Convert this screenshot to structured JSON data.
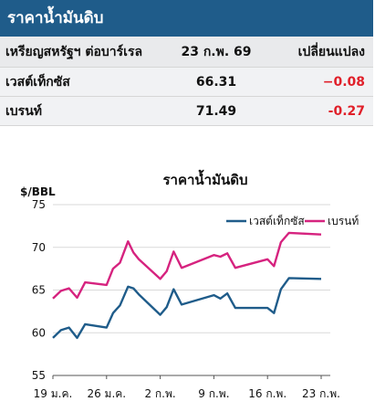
{
  "table": {
    "title": "ราคาน้ำมันดิบ",
    "header": {
      "label": "เหรียญสหรัฐฯ ต่อบาร์เรล",
      "date": "23 ก.พ. 69",
      "change": "เปลี่ยนแปลง"
    },
    "rows": [
      {
        "name": "เวสต์เท็กซัส",
        "value": "66.31",
        "change": "−0.08"
      },
      {
        "name": "เบรนท์",
        "value": "71.49",
        "change": "-0.27"
      }
    ]
  },
  "chart_data": {
    "type": "line",
    "title": "ราคาน้ำมันดิบ",
    "ylabel": "$/BBL",
    "ylim": [
      55,
      75
    ],
    "yticks": [
      55,
      60,
      65,
      70,
      75
    ],
    "xticks": [
      {
        "label": "19 ม.ค.",
        "index": 0
      },
      {
        "label": "26 ม.ค.",
        "index": 5
      },
      {
        "label": "2 ก.พ.",
        "index": 10
      },
      {
        "label": "9 ก.พ.",
        "index": 15
      },
      {
        "label": "16 ก.พ.",
        "index": 20
      },
      {
        "label": "23 ก.พ.",
        "index": 25
      }
    ],
    "x": [
      0,
      0.75,
      1.5,
      2.25,
      3,
      5,
      5.6,
      6.25,
      7,
      7.5,
      8,
      10,
      10.6,
      11.25,
      12,
      15,
      15.6,
      16.25,
      17,
      20,
      20.6,
      21.25,
      22,
      25
    ],
    "legend_position": "top-right",
    "series": [
      {
        "name": "เวสต์เท็กซัส",
        "color": "#1f5c8a",
        "values": [
          59.4,
          60.3,
          60.6,
          59.4,
          61.0,
          60.6,
          62.3,
          63.2,
          65.4,
          65.2,
          64.5,
          62.1,
          63.0,
          65.1,
          63.3,
          64.4,
          64.0,
          64.6,
          62.9,
          62.9,
          62.3,
          65.1,
          66.4,
          66.3
        ]
      },
      {
        "name": "เบรนท์",
        "color": "#d6237f",
        "values": [
          64.0,
          64.9,
          65.2,
          64.1,
          65.9,
          65.6,
          67.5,
          68.2,
          70.7,
          69.4,
          68.6,
          66.3,
          67.2,
          69.5,
          67.6,
          69.1,
          68.9,
          69.3,
          67.6,
          68.6,
          67.8,
          70.6,
          71.7,
          71.5
        ]
      }
    ]
  }
}
